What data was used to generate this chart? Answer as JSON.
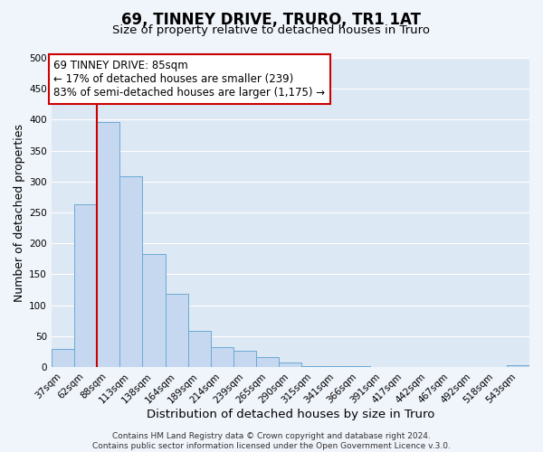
{
  "title": "69, TINNEY DRIVE, TRURO, TR1 1AT",
  "subtitle": "Size of property relative to detached houses in Truro",
  "xlabel": "Distribution of detached houses by size in Truro",
  "ylabel": "Number of detached properties",
  "categories": [
    "37sqm",
    "62sqm",
    "88sqm",
    "113sqm",
    "138sqm",
    "164sqm",
    "189sqm",
    "214sqm",
    "239sqm",
    "265sqm",
    "290sqm",
    "315sqm",
    "341sqm",
    "366sqm",
    "391sqm",
    "417sqm",
    "442sqm",
    "467sqm",
    "492sqm",
    "518sqm",
    "543sqm"
  ],
  "values": [
    30,
    263,
    396,
    308,
    183,
    118,
    58,
    32,
    26,
    16,
    7,
    2,
    1,
    1,
    0,
    0,
    0,
    0,
    0,
    0,
    3
  ],
  "bar_color": "#c5d8f0",
  "bar_edge_color": "#6aaad4",
  "fig_bg_color": "#f0f4fb",
  "plot_bg_color": "#dde8f5",
  "grid_color": "#ffffff",
  "vline_color": "#cc0000",
  "vline_x_index": 2,
  "annotation_line1": "69 TINNEY DRIVE: 85sqm",
  "annotation_line2": "← 17% of detached houses are smaller (239)",
  "annotation_line3": "83% of semi-detached houses are larger (1,175) →",
  "annotation_box_bg": "#ffffff",
  "annotation_box_edge": "#cc0000",
  "footer_text": "Contains HM Land Registry data © Crown copyright and database right 2024.\nContains public sector information licensed under the Open Government Licence v.3.0.",
  "ylim": [
    0,
    500
  ],
  "yticks": [
    0,
    50,
    100,
    150,
    200,
    250,
    300,
    350,
    400,
    450,
    500
  ],
  "title_fontsize": 12,
  "subtitle_fontsize": 9.5,
  "xlabel_fontsize": 9.5,
  "ylabel_fontsize": 9,
  "tick_fontsize": 7.5,
  "annotation_fontsize": 8.5,
  "footer_fontsize": 6.5
}
